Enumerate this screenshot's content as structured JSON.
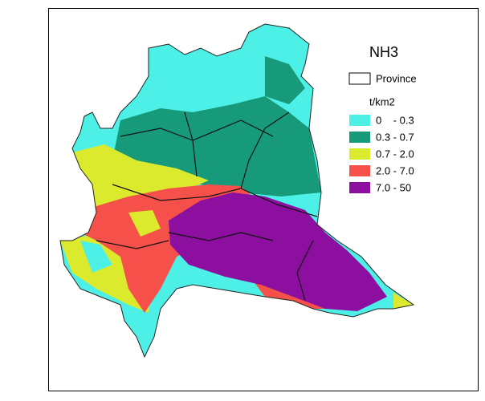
{
  "map": {
    "title": "NH3",
    "legend": {
      "boundary_label": "Province",
      "unit": "t/km2",
      "classes": [
        {
          "label": "0    - 0.3",
          "color": "#4df0e6"
        },
        {
          "label": "0.3 - 0.7",
          "color": "#169a7a"
        },
        {
          "label": "0.7 - 2.0",
          "color": "#dcea2e"
        },
        {
          "label": "2.0 - 7.0",
          "color": "#f5504a"
        },
        {
          "label": "7.0 - 50",
          "color": "#8d0fa0"
        }
      ]
    }
  }
}
